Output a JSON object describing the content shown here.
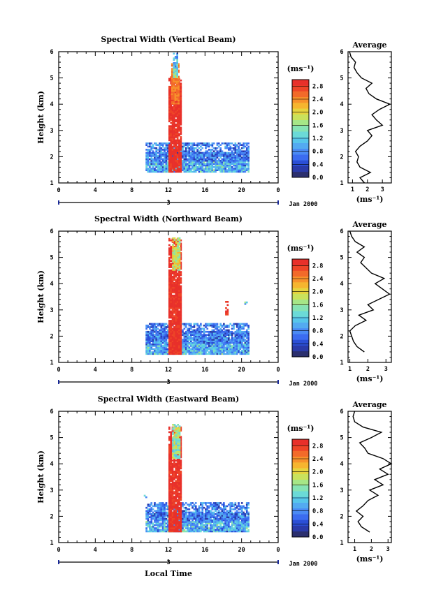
{
  "xlabel": "Local Time",
  "date_label": "Jan 2000",
  "date_marker": "3",
  "colors": {
    "scale": [
      "#2b2f6e",
      "#2a3aa8",
      "#2b4fd6",
      "#3b6cf0",
      "#4a8af4",
      "#53aaf1",
      "#57c6ea",
      "#6bdad7",
      "#86e3b4",
      "#a6e687",
      "#c9e25c",
      "#e6d43e",
      "#f6b52f",
      "#f7912b",
      "#f26a2a",
      "#ee4527",
      "#e8302a"
    ],
    "line": "#000000",
    "axis": "#000000"
  },
  "chart_data": [
    {
      "type": "heatmap",
      "title": "Spectral Width (Vertical Beam)",
      "ylabel": "Height (km)",
      "xlim": [
        0,
        24
      ],
      "ylim": [
        1,
        6
      ],
      "xticks": [
        "0",
        "4",
        "8",
        "12",
        "16",
        "20",
        "0"
      ],
      "yticks": [
        "1",
        "2",
        "3",
        "4",
        "5",
        "6"
      ],
      "colorbar": {
        "unit": "(ms⁻¹)",
        "ticks": [
          "0.0",
          "0.4",
          "0.8",
          "1.2",
          "1.6",
          "2.0",
          "2.4",
          "2.8"
        ],
        "range": [
          0,
          3.0
        ]
      },
      "blocks": [
        {
          "t0": 9.5,
          "t1": 20.8,
          "h0": 1.4,
          "h1": 2.5,
          "v": 0.7
        },
        {
          "t0": 12.0,
          "t1": 13.3,
          "h0": 1.4,
          "h1": 5.0,
          "v": 2.9
        },
        {
          "t0": 12.3,
          "t1": 13.2,
          "h0": 4.0,
          "h1": 5.5,
          "v": 2.5
        },
        {
          "t0": 12.5,
          "t1": 13.0,
          "h0": 5.0,
          "h1": 5.9,
          "v": 1.1
        }
      ],
      "profile": {
        "title": "Average",
        "xlabel": "(ms⁻¹)",
        "xticks": [
          "1",
          "2",
          "3"
        ],
        "xlim": [
          0.7,
          3.6
        ],
        "yticks": [
          "1",
          "2",
          "3",
          "4",
          "5",
          "6"
        ],
        "h": [
          1.0,
          1.2,
          1.4,
          1.6,
          1.8,
          2.0,
          2.2,
          2.4,
          2.6,
          2.8,
          3.0,
          3.2,
          3.4,
          3.6,
          3.8,
          4.0,
          4.2,
          4.4,
          4.6,
          4.8,
          5.0,
          5.2,
          5.4,
          5.6,
          5.8,
          6.0
        ],
        "w": [
          1.8,
          1.5,
          2.2,
          1.5,
          1.3,
          1.4,
          1.2,
          1.5,
          2.0,
          2.3,
          2.0,
          3.0,
          2.6,
          2.3,
          2.8,
          3.5,
          2.6,
          2.1,
          1.9,
          2.3,
          1.6,
          1.3,
          1.1,
          1.2,
          0.9,
          0.8
        ]
      }
    },
    {
      "type": "heatmap",
      "title": "Spectral Width (Northward Beam)",
      "ylabel": "Height (km)",
      "xlim": [
        0,
        24
      ],
      "ylim": [
        1,
        6
      ],
      "xticks": [
        "0",
        "4",
        "8",
        "12",
        "16",
        "20",
        "0"
      ],
      "yticks": [
        "1",
        "2",
        "3",
        "4",
        "5",
        "6"
      ],
      "colorbar": {
        "unit": "(ms⁻¹)",
        "ticks": [
          "0.0",
          "0.4",
          "0.8",
          "1.2",
          "1.6",
          "2.0",
          "2.4",
          "2.8"
        ],
        "range": [
          0,
          3.0
        ]
      },
      "blocks": [
        {
          "t0": 9.5,
          "t1": 20.8,
          "h0": 1.3,
          "h1": 2.5,
          "v": 0.7
        },
        {
          "t0": 12.0,
          "t1": 13.3,
          "h0": 1.3,
          "h1": 5.7,
          "v": 2.9
        },
        {
          "t0": 12.4,
          "t1": 13.2,
          "h0": 4.5,
          "h1": 5.7,
          "v": 1.9
        },
        {
          "t0": 18.2,
          "t1": 18.4,
          "h0": 2.8,
          "h1": 3.3,
          "v": 2.9
        },
        {
          "t0": 20.3,
          "t1": 20.5,
          "h0": 3.2,
          "h1": 3.3,
          "v": 0.8
        }
      ],
      "profile": {
        "title": "Average",
        "xlabel": "(ms⁻¹)",
        "xticks": [
          "1",
          "2",
          "3"
        ],
        "xlim": [
          0.9,
          3.3
        ],
        "yticks": [
          "1",
          "2",
          "3",
          "4",
          "5",
          "6"
        ],
        "h": [
          1.4,
          1.6,
          1.8,
          2.0,
          2.2,
          2.4,
          2.6,
          2.8,
          3.0,
          3.2,
          3.4,
          3.6,
          3.8,
          4.0,
          4.2,
          4.4,
          4.6,
          4.8,
          5.0,
          5.2,
          5.4,
          5.6,
          5.8,
          6.0
        ],
        "w": [
          1.8,
          1.4,
          1.2,
          1.1,
          1.0,
          1.3,
          1.9,
          1.5,
          2.3,
          2.0,
          2.6,
          3.2,
          2.8,
          2.4,
          2.9,
          2.2,
          1.9,
          1.6,
          1.8,
          1.4,
          1.8,
          1.3,
          1.1,
          1.0
        ]
      }
    },
    {
      "type": "heatmap",
      "title": "Spectral Width (Eastward Beam)",
      "ylabel": "Height (km)",
      "xlim": [
        0,
        24
      ],
      "ylim": [
        1,
        6
      ],
      "xticks": [
        "0",
        "4",
        "8",
        "12",
        "16",
        "20",
        "0"
      ],
      "yticks": [
        "1",
        "2",
        "3",
        "4",
        "5",
        "6"
      ],
      "colorbar": {
        "unit": "(ms⁻¹)",
        "ticks": [
          "0.0",
          "0.4",
          "0.8",
          "1.2",
          "1.6",
          "2.0",
          "2.4",
          "2.8"
        ],
        "range": [
          0,
          3.0
        ]
      },
      "blocks": [
        {
          "t0": 9.5,
          "t1": 20.8,
          "h0": 1.4,
          "h1": 2.5,
          "v": 0.7
        },
        {
          "t0": 12.0,
          "t1": 13.3,
          "h0": 1.4,
          "h1": 5.4,
          "v": 2.9
        },
        {
          "t0": 12.4,
          "t1": 13.2,
          "h0": 4.2,
          "h1": 5.5,
          "v": 1.6
        },
        {
          "t0": 9.3,
          "t1": 9.5,
          "h0": 2.7,
          "h1": 2.8,
          "v": 0.5
        }
      ],
      "profile": {
        "title": "Average",
        "xlabel": "(ms⁻¹)",
        "xticks": [
          "1",
          "2",
          "3"
        ],
        "xlim": [
          0.6,
          3.2
        ],
        "yticks": [
          "1",
          "2",
          "3",
          "4",
          "5",
          "6"
        ],
        "h": [
          1.4,
          1.6,
          1.8,
          2.0,
          2.2,
          2.4,
          2.6,
          2.8,
          3.0,
          3.2,
          3.4,
          3.6,
          3.8,
          4.0,
          4.2,
          4.4,
          4.6,
          4.8,
          5.0,
          5.2,
          5.4,
          5.6,
          5.8,
          6.0
        ],
        "w": [
          1.9,
          1.4,
          1.2,
          1.5,
          1.1,
          1.5,
          1.8,
          2.4,
          1.9,
          2.7,
          2.2,
          3.0,
          2.5,
          3.2,
          2.7,
          1.8,
          1.6,
          1.3,
          2.0,
          2.6,
          1.5,
          1.0,
          0.9,
          1.0
        ]
      }
    }
  ]
}
